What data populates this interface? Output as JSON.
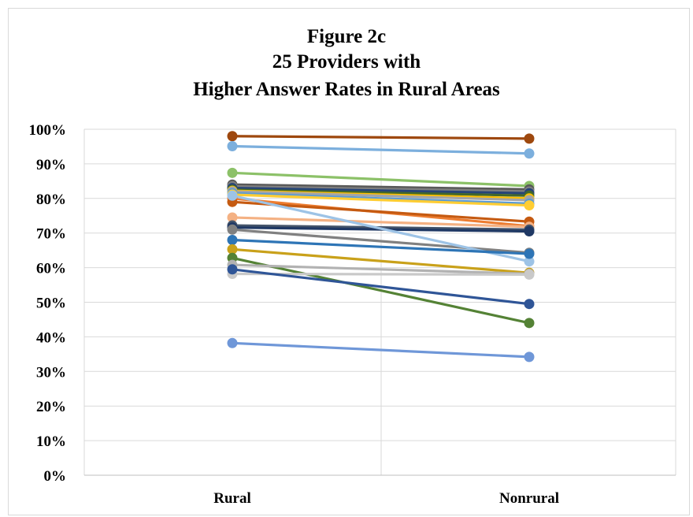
{
  "chart_data": {
    "type": "line",
    "title": [
      "Figure 2c",
      "25 Providers with",
      "Higher Answer Rates in Rural Areas"
    ],
    "xlabel": "",
    "ylabel": "",
    "categories": [
      "Rural",
      "Nonrural"
    ],
    "ylim": [
      0,
      1
    ],
    "yticks": [
      "0%",
      "10%",
      "20%",
      "30%",
      "40%",
      "50%",
      "60%",
      "70%",
      "80%",
      "90%",
      "100%"
    ],
    "grid": true,
    "legend": "none",
    "series": [
      {
        "color": "#9E480E",
        "values": [
          0.98,
          0.973
        ]
      },
      {
        "color": "#7CAFDD",
        "values": [
          0.951,
          0.93
        ]
      },
      {
        "color": "#8CC168",
        "values": [
          0.874,
          0.836
        ]
      },
      {
        "color": "#595959",
        "values": [
          0.84,
          0.826
        ]
      },
      {
        "color": "#7F7F7F",
        "values": [
          0.835,
          0.82
        ]
      },
      {
        "color": "#264478",
        "values": [
          0.83,
          0.815
        ]
      },
      {
        "color": "#43682B",
        "values": [
          0.825,
          0.808
        ]
      },
      {
        "color": "#FFC000",
        "values": [
          0.822,
          0.8
        ]
      },
      {
        "color": "#A5A5A5",
        "values": [
          0.82,
          0.795
        ]
      },
      {
        "color": "#5B9BD5",
        "values": [
          0.815,
          0.785
        ]
      },
      {
        "color": "#FFCD33",
        "values": [
          0.811,
          0.78
        ]
      },
      {
        "color": "#ED7D31",
        "values": [
          0.8,
          0.72
        ]
      },
      {
        "color": "#C55A11",
        "values": [
          0.79,
          0.733
        ]
      },
      {
        "color": "#F4B183",
        "values": [
          0.745,
          0.718
        ]
      },
      {
        "color": "#44546A",
        "values": [
          0.722,
          0.71
        ]
      },
      {
        "color": "#1F3864",
        "values": [
          0.716,
          0.705
        ]
      },
      {
        "color": "#808080",
        "values": [
          0.71,
          0.643
        ]
      },
      {
        "color": "#9DC3E6",
        "values": [
          0.808,
          0.618
        ]
      },
      {
        "color": "#2E75B6",
        "values": [
          0.68,
          0.64
        ]
      },
      {
        "color": "#C9A11A",
        "values": [
          0.653,
          0.585
        ]
      },
      {
        "color": "#548235",
        "values": [
          0.628,
          0.44
        ]
      },
      {
        "color": "#B2B2B2",
        "values": [
          0.608,
          0.582
        ]
      },
      {
        "color": "#C9C9C9",
        "values": [
          0.582,
          0.58
        ]
      },
      {
        "color": "#2F5597",
        "values": [
          0.595,
          0.495
        ]
      },
      {
        "color": "#6F97D8",
        "values": [
          0.382,
          0.342
        ]
      }
    ]
  }
}
